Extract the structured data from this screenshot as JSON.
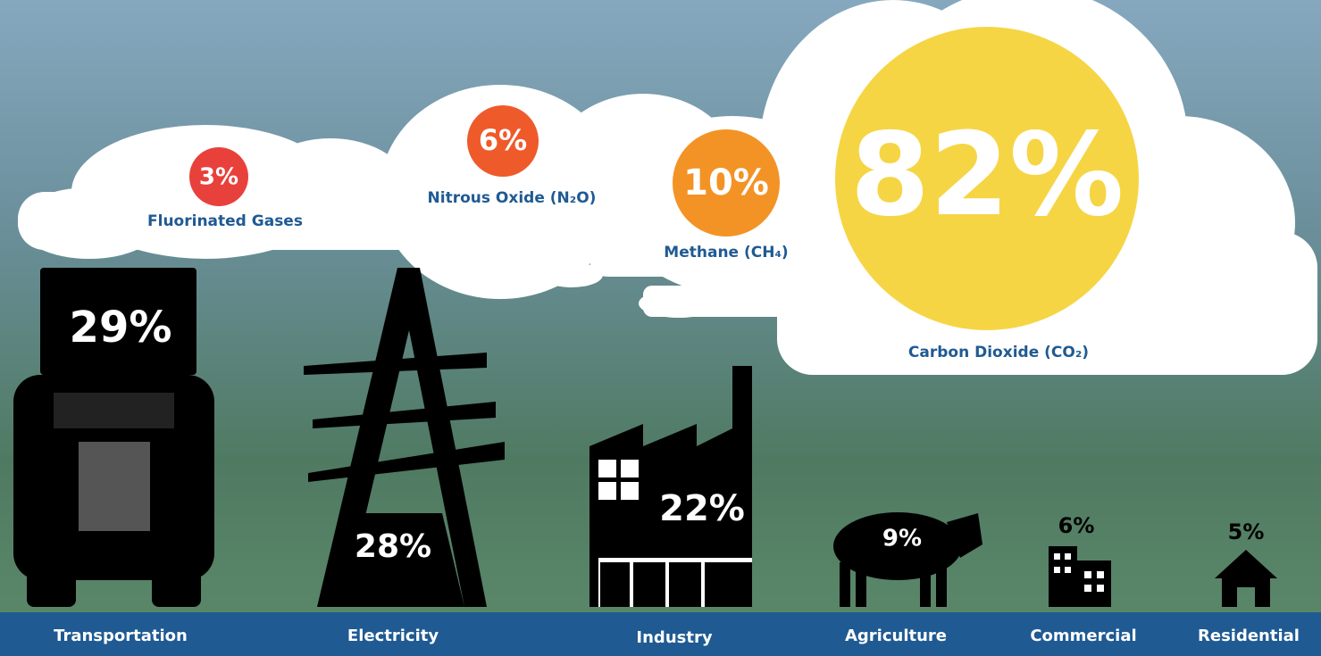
{
  "gases": [
    {
      "label": "Fluorinated Gases",
      "share": "3%"
    },
    {
      "label": "Nitrous Oxide (N₂O)",
      "share": "6%"
    },
    {
      "label": "Methane (CH₄)",
      "share": "10%"
    },
    {
      "label": "Carbon Dioxide (CO₂)",
      "share": "82%"
    }
  ],
  "sectors": [
    {
      "label": "Transportation",
      "share": "29%"
    },
    {
      "label": "Electricity",
      "share": "28%"
    },
    {
      "label": "Industry",
      "share": "22%"
    },
    {
      "label": "Agriculture",
      "share": "9%"
    },
    {
      "label": "Commercial",
      "share": "6%"
    },
    {
      "label": "Residential",
      "share": "5%"
    }
  ]
}
